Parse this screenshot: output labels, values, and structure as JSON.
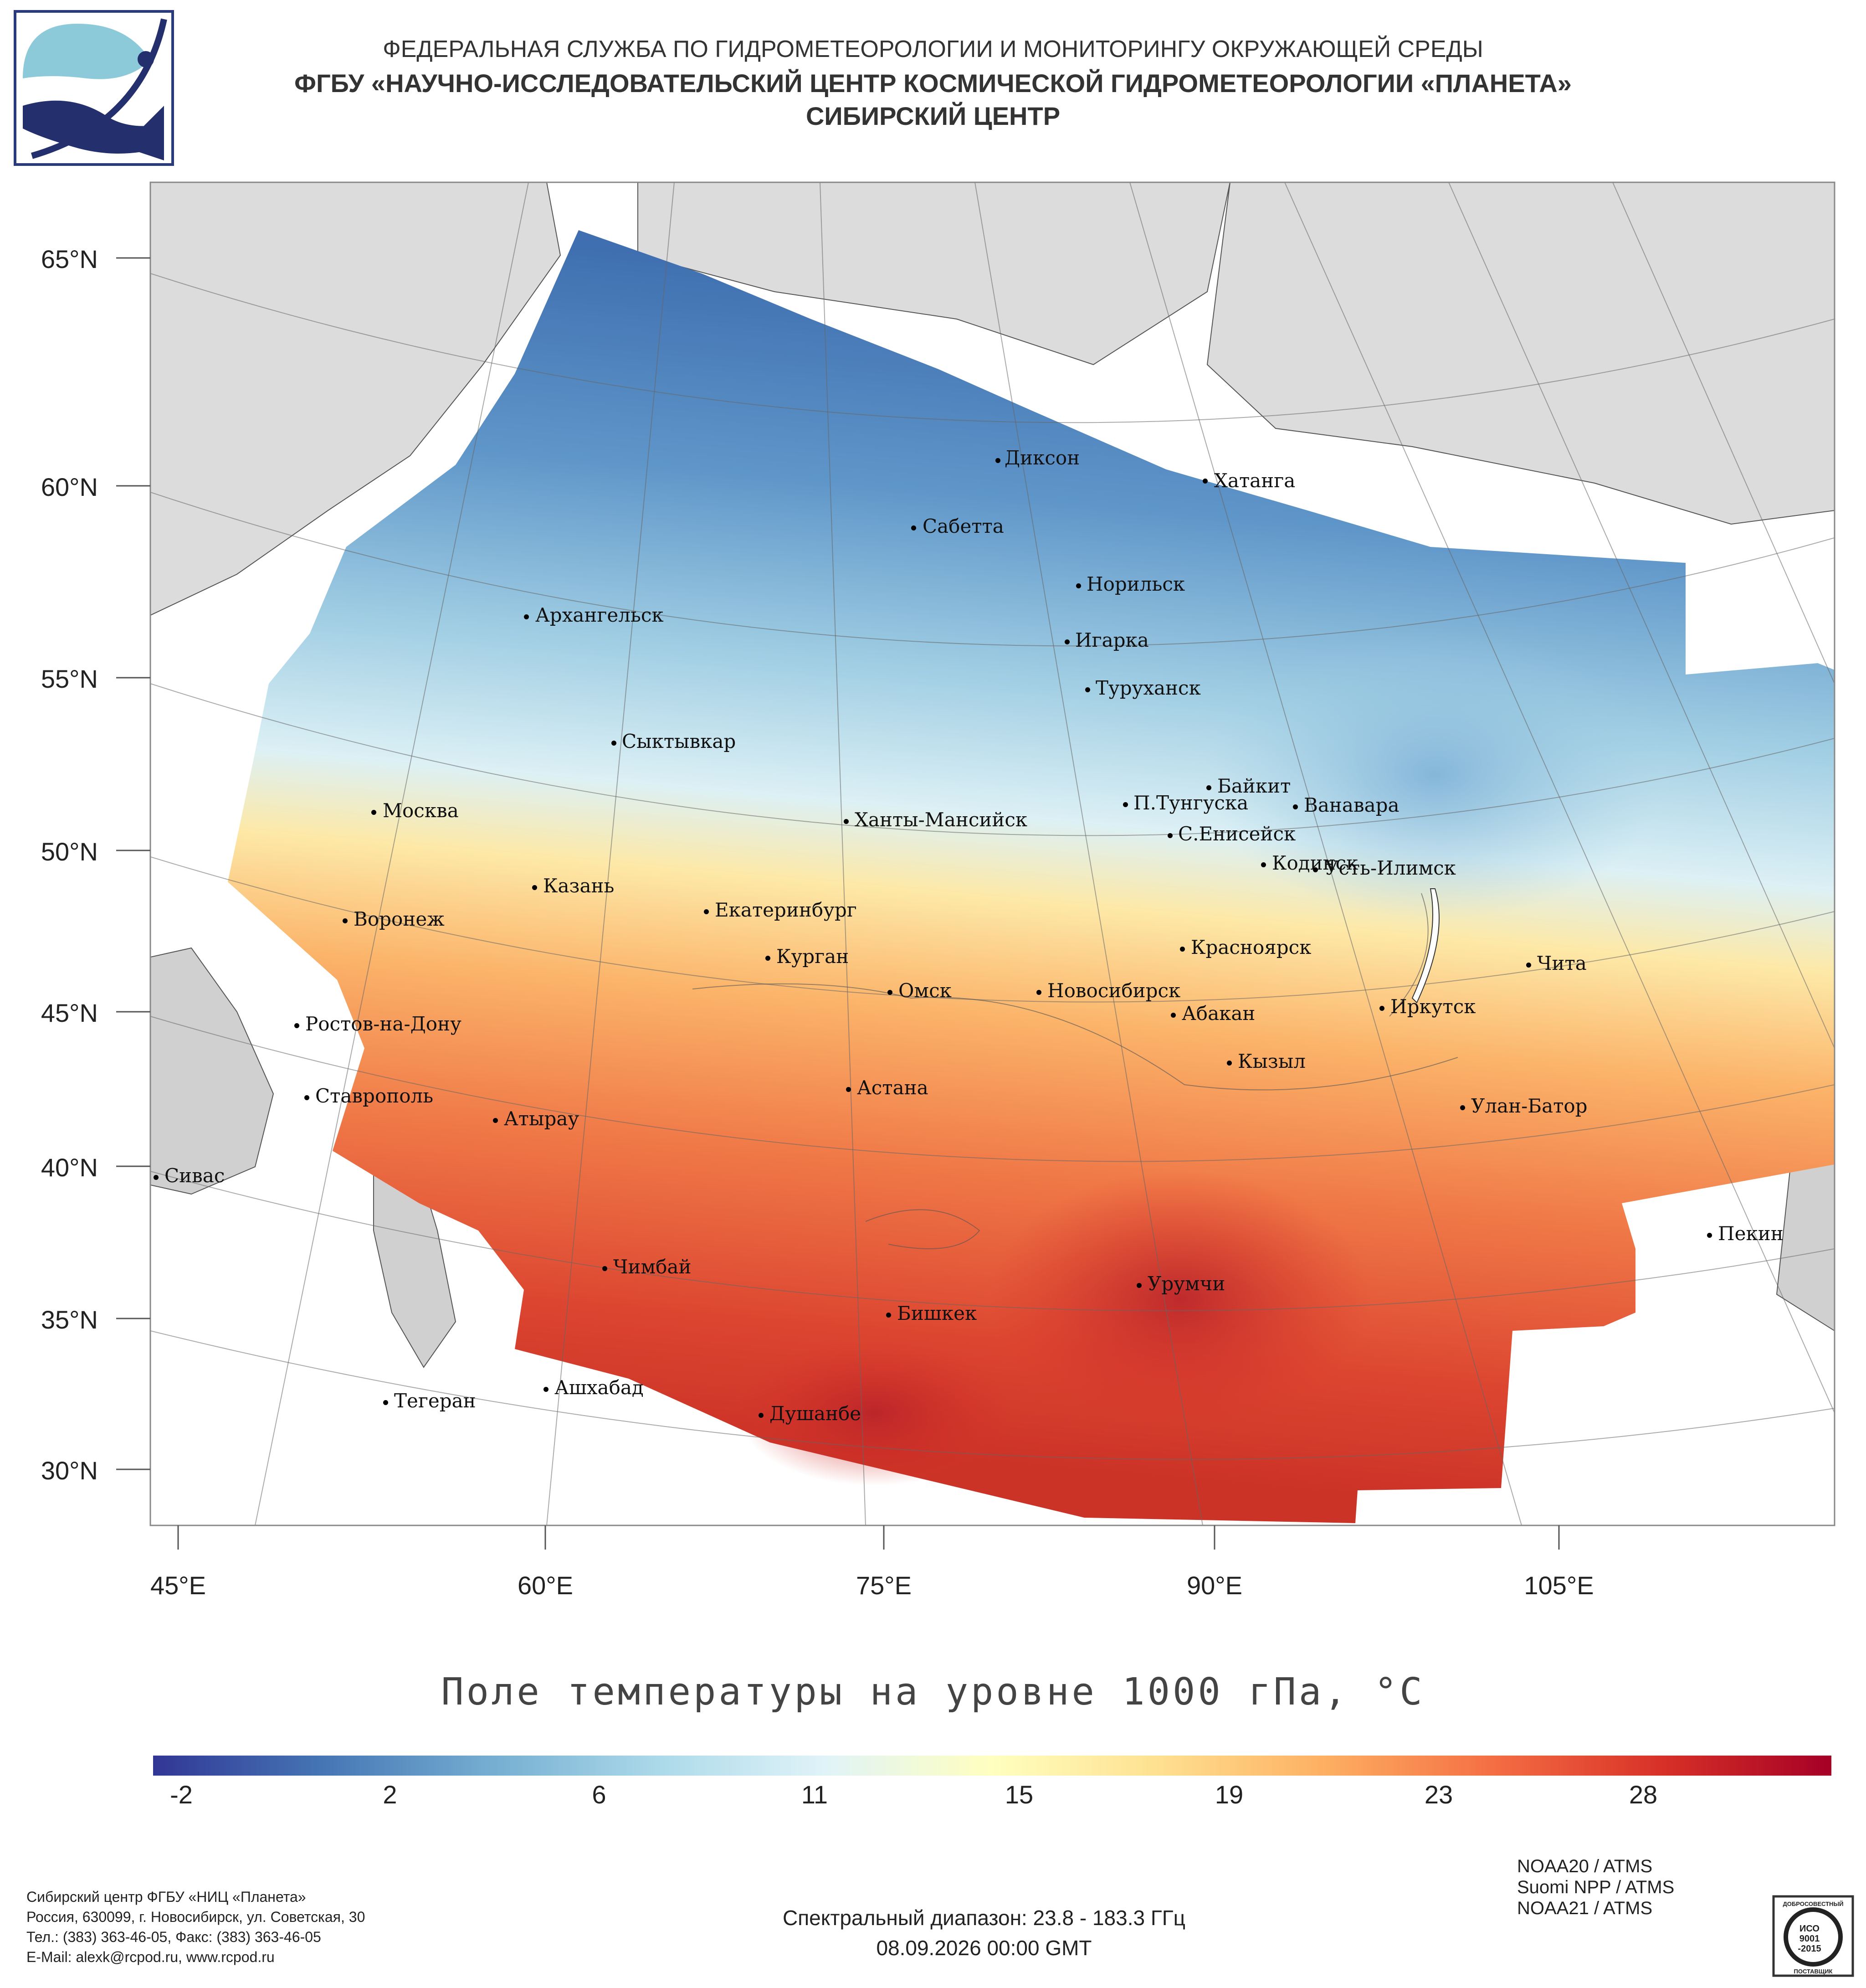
{
  "header": {
    "line1": "ФЕДЕРАЛЬНАЯ СЛУЖБА ПО ГИДРОМЕТЕОРОЛОГИИ И МОНИТОРИНГУ ОКРУЖАЮЩЕЙ СРЕДЫ",
    "line2": "ФГБУ «НАУЧНО-ИССЛЕДОВАТЕЛЬСКИЙ ЦЕНТР КОСМИЧЕСКОЙ ГИДРОМЕТЕОРОЛОГИИ «ПЛАНЕТА»",
    "line3": "СИБИРСКИЙ ЦЕНТР"
  },
  "map": {
    "lat_labels": [
      "65°N",
      "60°N",
      "55°N",
      "50°N",
      "45°N",
      "40°N",
      "35°N",
      "30°N"
    ],
    "lon_labels": [
      "45°E",
      "60°E",
      "75°E",
      "90°E",
      "105°E"
    ],
    "cities": [
      "Диксон",
      "Хатанга",
      "Сабетта",
      "Норильск",
      "Архангельск",
      "Игарка",
      "Туруханск",
      "Сыктывкар",
      "Байкит",
      "П.Тунгуска",
      "Ванавара",
      "Москва",
      "Ханты-Мансийск",
      "С.Енисейск",
      "Кодинск",
      "Усть-Илимск",
      "Казань",
      "Екатеринбург",
      "Воронеж",
      "Красноярск",
      "Курган",
      "Чита",
      "Омск",
      "Новосибирск",
      "Иркутск",
      "Ростов-на-Дону",
      "Абакан",
      "Кызыл",
      "Астана",
      "Ставрополь",
      "Улан-Батор",
      "Атырау",
      "Сивас",
      "Пекин",
      "Чимбай",
      "Урумчи",
      "Бишкек",
      "Тегеран",
      "Ашхабад",
      "Душанбе"
    ]
  },
  "colorbar": {
    "title": "Поле температуры на уровне 1000 гПа, °C",
    "ticks": [
      "-2",
      "2",
      "6",
      "11",
      "15",
      "19",
      "23",
      "28"
    ],
    "colors": [
      "#313695",
      "#4575b4",
      "#74add1",
      "#abd9e9",
      "#e0f3f8",
      "#ffffbf",
      "#fee090",
      "#fdae61",
      "#f46d43",
      "#d73027",
      "#a50026"
    ]
  },
  "footer": {
    "org1": "Сибирский центр ФГБУ «НИЦ «Планета»",
    "org2": "Россия, 630099, г. Новосибирск, ул. Советская, 30",
    "org3": "Тел.: (383) 363-46-05, Факс: (383) 363-46-05",
    "org4": "E-Mail: alexk@rcpod.ru, www.rcpod.ru",
    "spectral": "Спектральный диапазон: 23.8 - 183.3 ГГц",
    "datetime": "08.09.2026 00:00 GMT",
    "sat1": "NOAA20 / ATMS",
    "sat2": "Suomi NPP / ATMS",
    "sat3": "NOAA21 / ATMS",
    "iso_top": "ДОБРОСОВЕСТНЫЙ",
    "iso_mid1": "ИСО",
    "iso_mid2": "9001",
    "iso_mid3": "-2015",
    "iso_bottom": "ПОСТАВЩИК"
  }
}
